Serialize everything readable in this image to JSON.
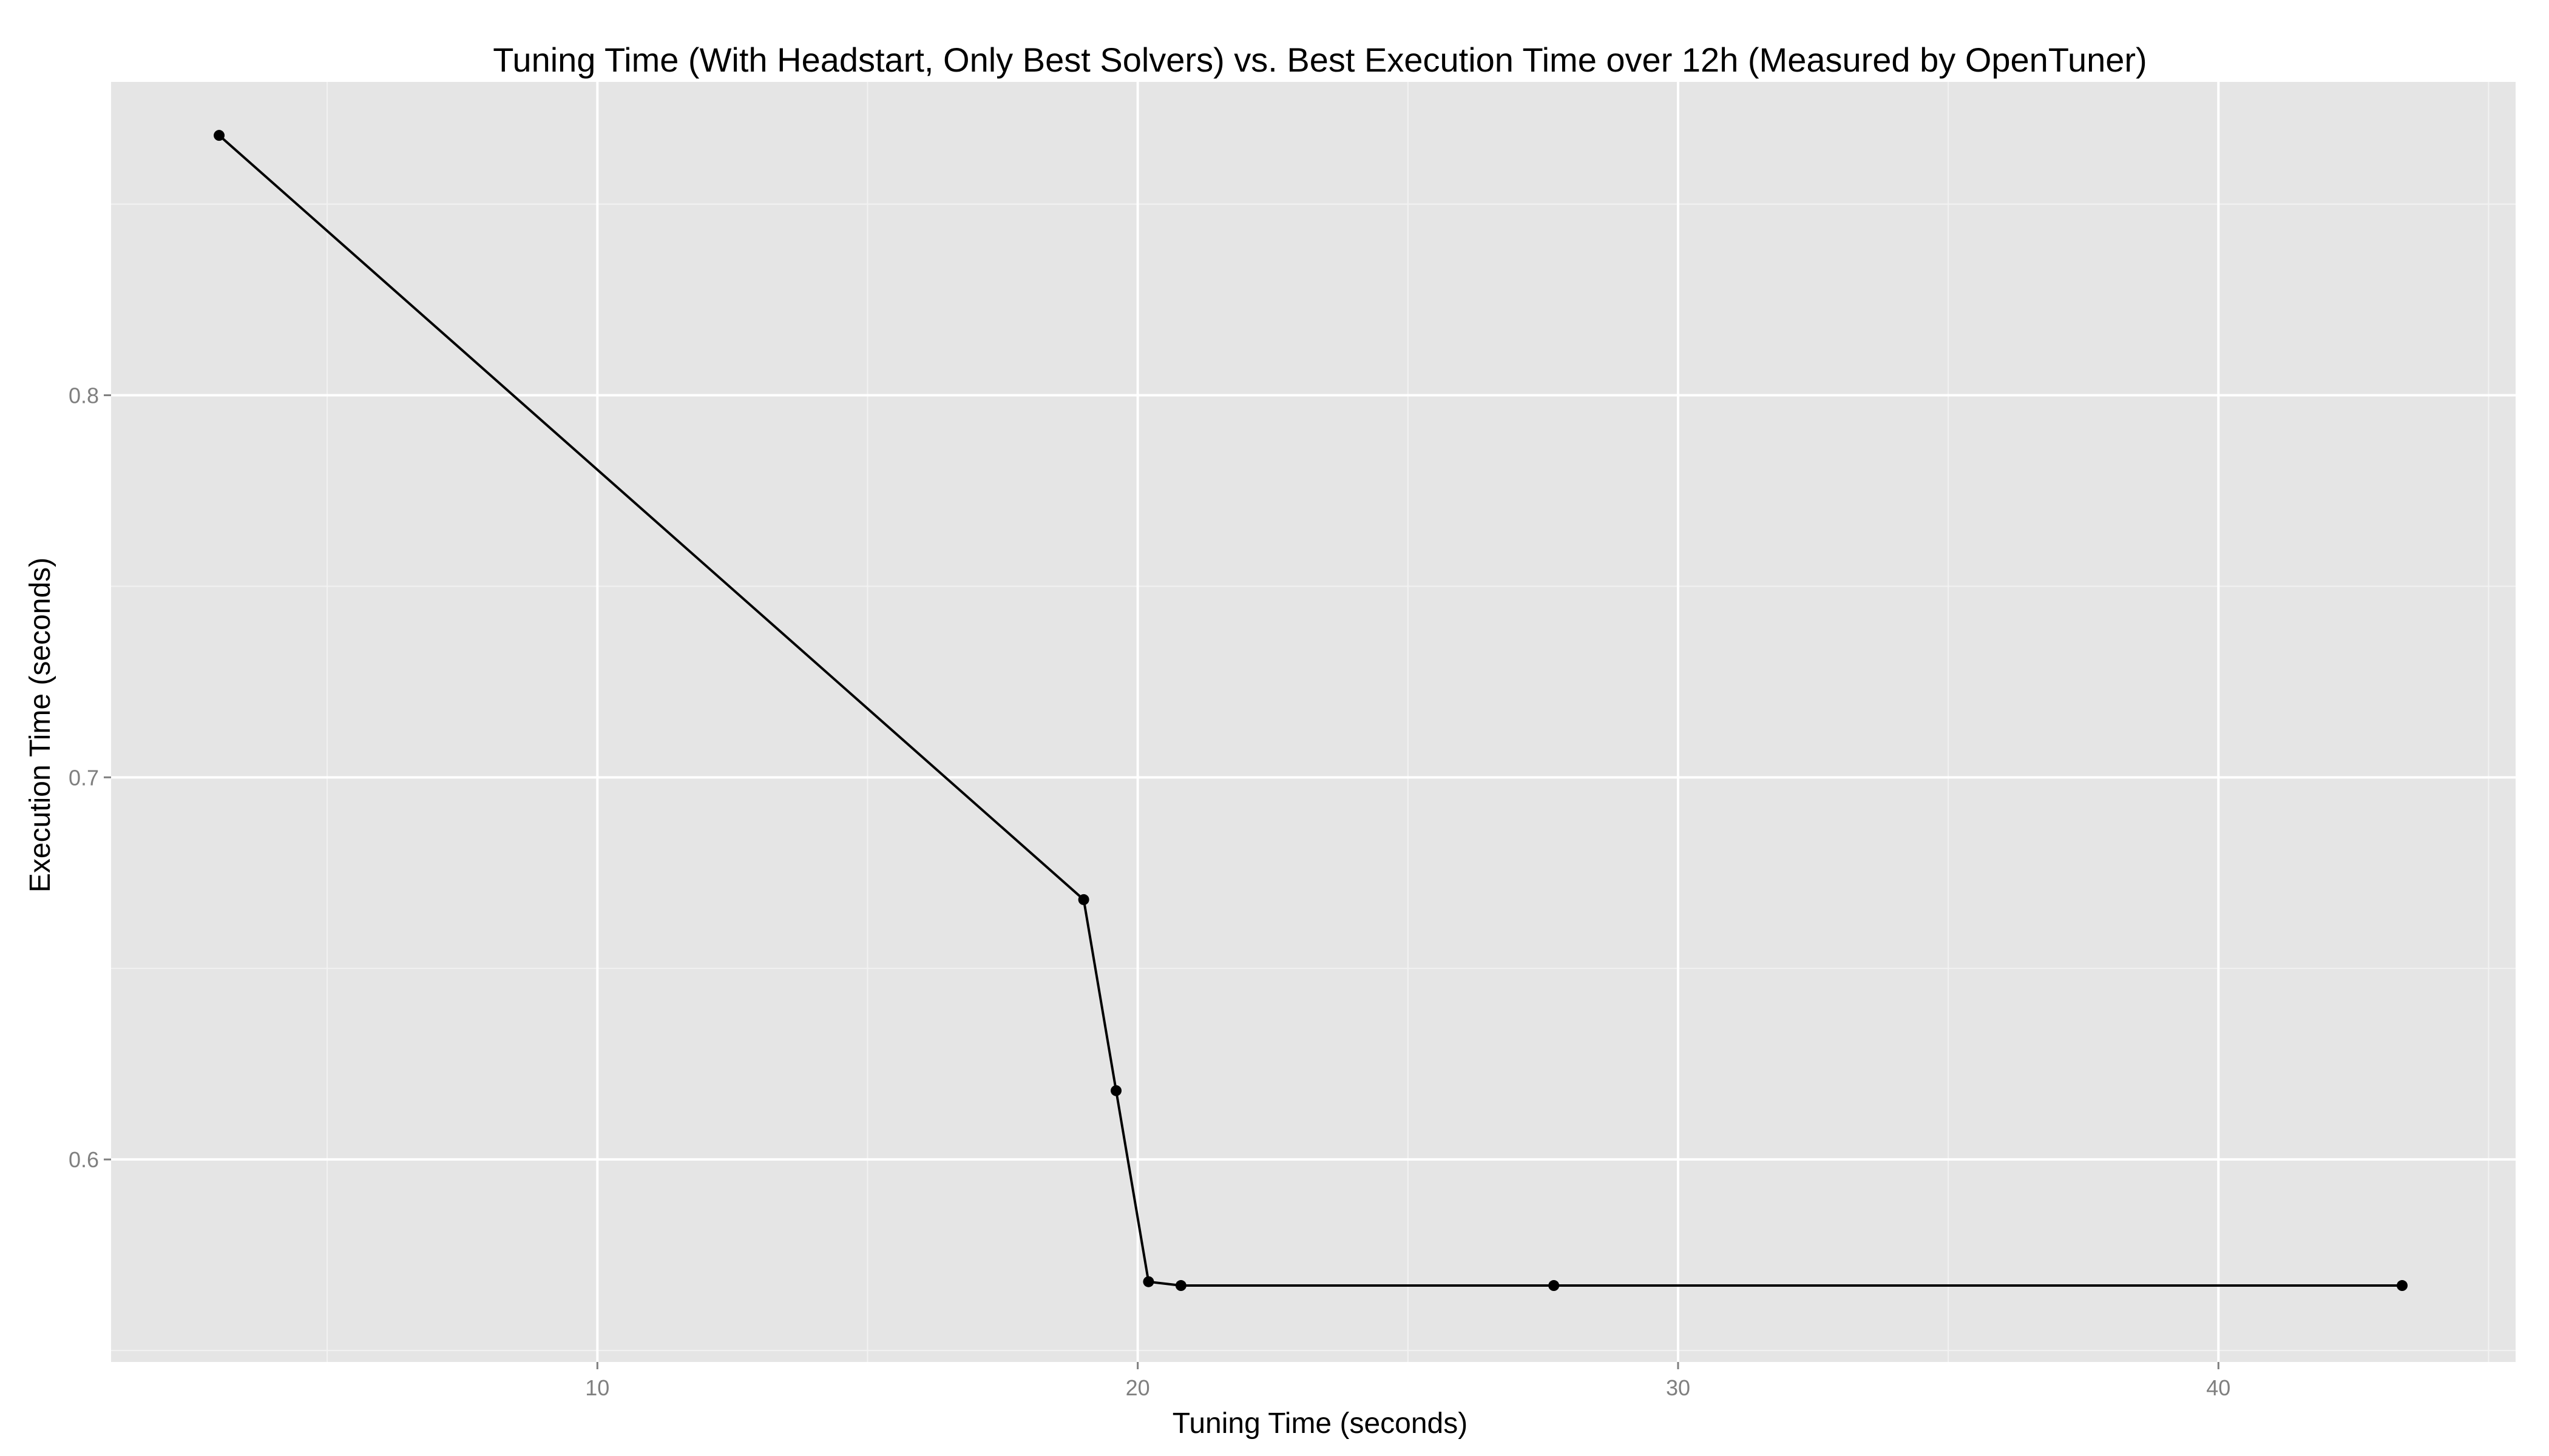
{
  "chart_data": {
    "type": "line",
    "title": "Tuning Time (With Headstart, Only Best Solvers) vs. Best Execution Time over 12h (Measured by OpenTuner)",
    "xlabel": "Tuning Time (seconds)",
    "ylabel": "Execution Time (seconds)",
    "xlim": [
      1.0,
      45.5
    ],
    "ylim": [
      0.547,
      0.882
    ],
    "x_ticks": [
      10,
      20,
      30,
      40
    ],
    "x_tick_labels": [
      "10",
      "20",
      "30",
      "40"
    ],
    "y_ticks": [
      0.6,
      0.7,
      0.8
    ],
    "y_tick_labels": [
      "0.6",
      "0.7",
      "0.8"
    ],
    "grid": true,
    "background_color": "#e5e5e5",
    "grid_color": "#ffffff",
    "line_color": "#000000",
    "series": [
      {
        "x": [
          3.0,
          19.0,
          19.6,
          20.2,
          20.8,
          27.7,
          43.4
        ],
        "y": [
          0.868,
          0.668,
          0.618,
          0.568,
          0.567,
          0.567,
          0.567
        ]
      }
    ]
  }
}
